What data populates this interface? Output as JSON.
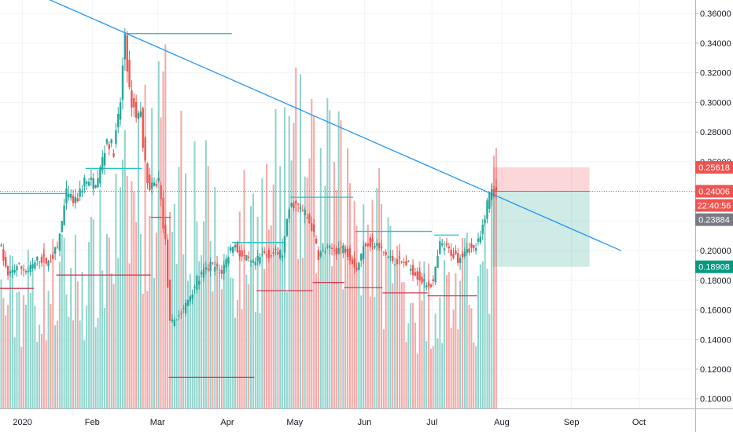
{
  "chart_data": {
    "type": "candlestick",
    "y_axis": {
      "ticks": [
        "0.36000",
        "0.34000",
        "0.32000",
        "0.30000",
        "0.28000",
        "0.26000",
        "0.24000",
        "0.22000",
        "0.20000",
        "0.18000",
        "0.16000",
        "0.14000",
        "0.12000",
        "0.10000"
      ],
      "ylim": [
        0.0935,
        0.367
      ],
      "position": "right"
    },
    "x_axis": {
      "labels": [
        {
          "text": "2020",
          "day": 0
        },
        {
          "text": "Feb",
          "day": 31
        },
        {
          "text": "Mar",
          "day": 60
        },
        {
          "text": "Apr",
          "day": 91
        },
        {
          "text": "May",
          "day": 121
        },
        {
          "text": "Jun",
          "day": 152
        },
        {
          "text": "Jul",
          "day": 182
        },
        {
          "text": "Aug",
          "day": 213
        },
        {
          "text": "Sep",
          "day": 244
        },
        {
          "text": "Oct",
          "day": 274
        }
      ],
      "xlim": [
        -10,
        299
      ]
    },
    "price_anchors": [
      [
        -10,
        0.207
      ],
      [
        -6,
        0.182
      ],
      [
        -2,
        0.19
      ],
      [
        3,
        0.186
      ],
      [
        8,
        0.195
      ],
      [
        12,
        0.192
      ],
      [
        16,
        0.202
      ],
      [
        20,
        0.238
      ],
      [
        24,
        0.232
      ],
      [
        28,
        0.247
      ],
      [
        30,
        0.245
      ],
      [
        34,
        0.248
      ],
      [
        38,
        0.275
      ],
      [
        41,
        0.268
      ],
      [
        44,
        0.3
      ],
      [
        46,
        0.347
      ],
      [
        48,
        0.305
      ],
      [
        51,
        0.292
      ],
      [
        53,
        0.292
      ],
      [
        55,
        0.257
      ],
      [
        57,
        0.24
      ],
      [
        61,
        0.248
      ],
      [
        63,
        0.218
      ],
      [
        64,
        0.205
      ],
      [
        66,
        0.15
      ],
      [
        69,
        0.155
      ],
      [
        72,
        0.16
      ],
      [
        78,
        0.18
      ],
      [
        84,
        0.19
      ],
      [
        89,
        0.186
      ],
      [
        94,
        0.205
      ],
      [
        98,
        0.196
      ],
      [
        103,
        0.19
      ],
      [
        108,
        0.198
      ],
      [
        116,
        0.198
      ],
      [
        119,
        0.228
      ],
      [
        121,
        0.232
      ],
      [
        126,
        0.225
      ],
      [
        129,
        0.216
      ],
      [
        132,
        0.197
      ],
      [
        135,
        0.2
      ],
      [
        140,
        0.201
      ],
      [
        144,
        0.202
      ],
      [
        149,
        0.188
      ],
      [
        153,
        0.206
      ],
      [
        157,
        0.204
      ],
      [
        161,
        0.199
      ],
      [
        164,
        0.194
      ],
      [
        167,
        0.193
      ],
      [
        171,
        0.191
      ],
      [
        175,
        0.185
      ],
      [
        179,
        0.178
      ],
      [
        183,
        0.178
      ],
      [
        186,
        0.204
      ],
      [
        190,
        0.2
      ],
      [
        194,
        0.195
      ],
      [
        198,
        0.203
      ],
      [
        201,
        0.2
      ],
      [
        204,
        0.208
      ],
      [
        207,
        0.232
      ],
      [
        209,
        0.244
      ],
      [
        210,
        0.24
      ]
    ],
    "volume_ylim": [
      0,
      0.042
    ],
    "volume_anchors": [
      [
        -10,
        0.012
      ],
      [
        30,
        0.015
      ],
      [
        46,
        0.022
      ],
      [
        64,
        0.03
      ],
      [
        90,
        0.016
      ],
      [
        121,
        0.026
      ],
      [
        150,
        0.022
      ],
      [
        175,
        0.012
      ],
      [
        204,
        0.014
      ],
      [
        210,
        0.022
      ]
    ],
    "trend_line": {
      "start": [
        -1,
        0.378
      ],
      "end": [
        266,
        0.2
      ],
      "color": "#2196f3"
    },
    "resistance_levels": [
      {
        "x0": -10,
        "x1": 20,
        "y": 0.2385
      },
      {
        "x0": 28,
        "x1": 53,
        "y": 0.2555
      },
      {
        "x0": 46,
        "x1": 93,
        "y": 0.3465
      },
      {
        "x0": 93,
        "x1": 117,
        "y": 0.2055
      },
      {
        "x0": 119,
        "x1": 147,
        "y": 0.236
      },
      {
        "x0": 148,
        "x1": 182,
        "y": 0.213
      },
      {
        "x0": 183,
        "x1": 194,
        "y": 0.2105
      }
    ],
    "support_levels": [
      {
        "x0": -10,
        "x1": 5,
        "y": 0.1745
      },
      {
        "x0": 15,
        "x1": 57,
        "y": 0.1835
      },
      {
        "x0": 57,
        "x1": 66,
        "y": 0.2225
      },
      {
        "x0": 65,
        "x1": 103,
        "y": 0.1145
      },
      {
        "x0": 104,
        "x1": 129,
        "y": 0.173
      },
      {
        "x0": 129,
        "x1": 143,
        "y": 0.1785
      },
      {
        "x0": 143,
        "x1": 160,
        "y": 0.175
      },
      {
        "x0": 160,
        "x1": 180,
        "y": 0.1715
      },
      {
        "x0": 180,
        "x1": 202,
        "y": 0.1695
      }
    ],
    "current_price_line": 0.24006,
    "position_tool": {
      "x0": 209,
      "x1": 252,
      "entry": 0.24006,
      "stop": 0.25618,
      "target": 0.18908
    },
    "price_badges": [
      {
        "label": "0.25618",
        "value": 0.25618,
        "color": "#ef5350"
      },
      {
        "label": "0.24006",
        "value": 0.24006,
        "color": "#ef5350"
      },
      {
        "label": "22:40:56",
        "value": 0.2305,
        "color": "#ef5350"
      },
      {
        "label": "0.23884",
        "value": 0.2209,
        "color": "#787b86"
      },
      {
        "label": "0.18908",
        "value": 0.18908,
        "color": "#089981"
      }
    ],
    "colors": {
      "up": "#26a69a",
      "down": "#ef5350",
      "support": "#d23b54",
      "resistance": "#22c4c4",
      "grid": "#f0f3fa",
      "axis_text": "#131722"
    }
  }
}
